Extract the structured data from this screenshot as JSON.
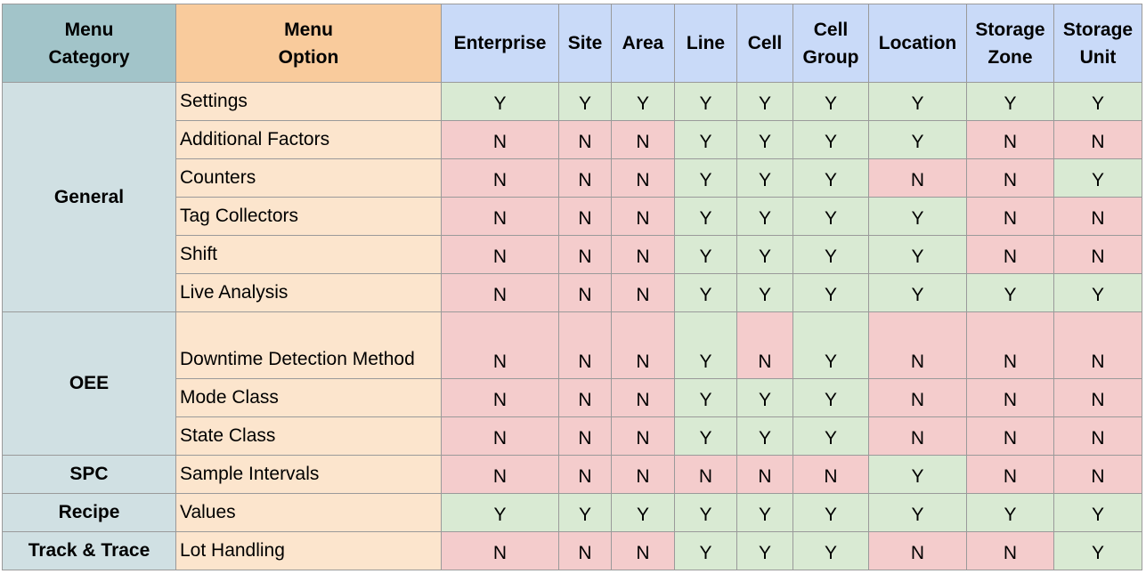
{
  "colors": {
    "category_header": "#a2c4c9",
    "option_header": "#f9cb9c",
    "level_header": "#c9daf8",
    "category_cell": "#d0e0e3",
    "option_cell": "#fce5cd",
    "yes": "#d9ead3",
    "no": "#f4cccc"
  },
  "headers": {
    "category": [
      "Menu",
      "Category"
    ],
    "option": [
      "Menu",
      "Option"
    ],
    "levels": [
      [
        "Enterprise"
      ],
      [
        "Site"
      ],
      [
        "Area"
      ],
      [
        "Line"
      ],
      [
        "Cell"
      ],
      [
        "Cell",
        "Group"
      ],
      [
        "Location"
      ],
      [
        "Storage",
        "Zone"
      ],
      [
        "Storage",
        "Unit"
      ]
    ]
  },
  "groups": [
    {
      "category": "General",
      "rows": [
        {
          "option": "Settings",
          "values": [
            "Y",
            "Y",
            "Y",
            "Y",
            "Y",
            "Y",
            "Y",
            "Y",
            "Y"
          ]
        },
        {
          "option": "Additional Factors",
          "values": [
            "N",
            "N",
            "N",
            "Y",
            "Y",
            "Y",
            "Y",
            "N",
            "N"
          ]
        },
        {
          "option": "Counters",
          "values": [
            "N",
            "N",
            "N",
            "Y",
            "Y",
            "Y",
            "N",
            "N",
            "Y"
          ]
        },
        {
          "option": "Tag Collectors",
          "values": [
            "N",
            "N",
            "N",
            "Y",
            "Y",
            "Y",
            "Y",
            "N",
            "N"
          ]
        },
        {
          "option": "Shift",
          "values": [
            "N",
            "N",
            "N",
            "Y",
            "Y",
            "Y",
            "Y",
            "N",
            "N"
          ]
        },
        {
          "option": "Live Analysis",
          "values": [
            "N",
            "N",
            "N",
            "Y",
            "Y",
            "Y",
            "Y",
            "Y",
            "Y"
          ]
        }
      ]
    },
    {
      "category": "OEE",
      "rows": [
        {
          "option": "Downtime Detection Method",
          "values": [
            "N",
            "N",
            "N",
            "Y",
            "N",
            "Y",
            "N",
            "N",
            "N"
          ]
        },
        {
          "option": "Mode Class",
          "values": [
            "N",
            "N",
            "N",
            "Y",
            "Y",
            "Y",
            "N",
            "N",
            "N"
          ]
        },
        {
          "option": "State Class",
          "values": [
            "N",
            "N",
            "N",
            "Y",
            "Y",
            "Y",
            "N",
            "N",
            "N"
          ]
        }
      ]
    },
    {
      "category": "SPC",
      "rows": [
        {
          "option": "Sample Intervals",
          "values": [
            "N",
            "N",
            "N",
            "N",
            "N",
            "N",
            "Y",
            "N",
            "N"
          ]
        }
      ]
    },
    {
      "category": "Recipe",
      "rows": [
        {
          "option": "Values",
          "values": [
            "Y",
            "Y",
            "Y",
            "Y",
            "Y",
            "Y",
            "Y",
            "Y",
            "Y"
          ]
        }
      ]
    },
    {
      "category": "Track & Trace",
      "rows": [
        {
          "option": "Lot Handling",
          "values": [
            "N",
            "N",
            "N",
            "Y",
            "Y",
            "Y",
            "N",
            "N",
            "Y"
          ]
        }
      ]
    }
  ]
}
